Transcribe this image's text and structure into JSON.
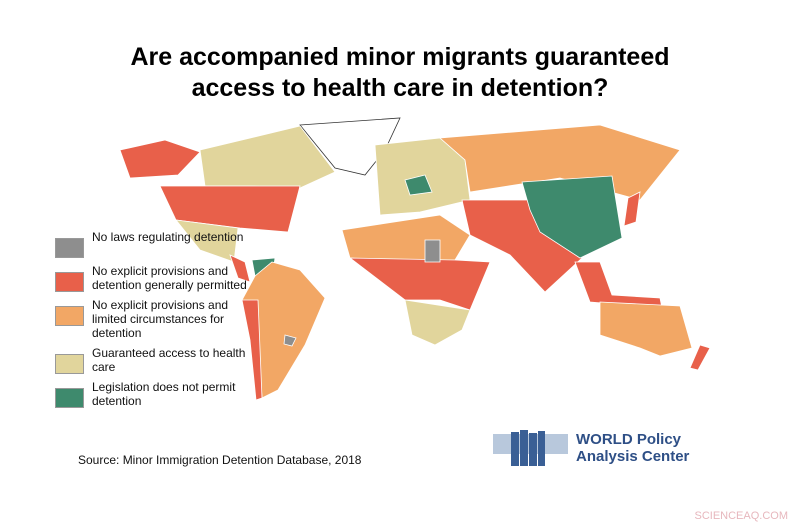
{
  "title": [
    "Are accompanied minor migrants guaranteed",
    "access to health care in detention?"
  ],
  "legend": [
    {
      "label": "No laws regulating detention",
      "color": "#8e8e8e"
    },
    {
      "label": "No explicit provisions and detention generally permitted",
      "color": "#e8604a"
    },
    {
      "label": "No explicit provisions and limited circumstances for detention",
      "color": "#f2a765"
    },
    {
      "label": "Guaranteed access to health care",
      "color": "#e1d59c"
    },
    {
      "label": "Legislation does not permit detention",
      "color": "#3e8a6d"
    }
  ],
  "source": "Source: Minor Immigration Detention Database, 2018",
  "logo": {
    "line1": "WORLD Policy",
    "line2": "Analysis Center"
  },
  "watermark": "SCIENCEAQ.COM"
}
